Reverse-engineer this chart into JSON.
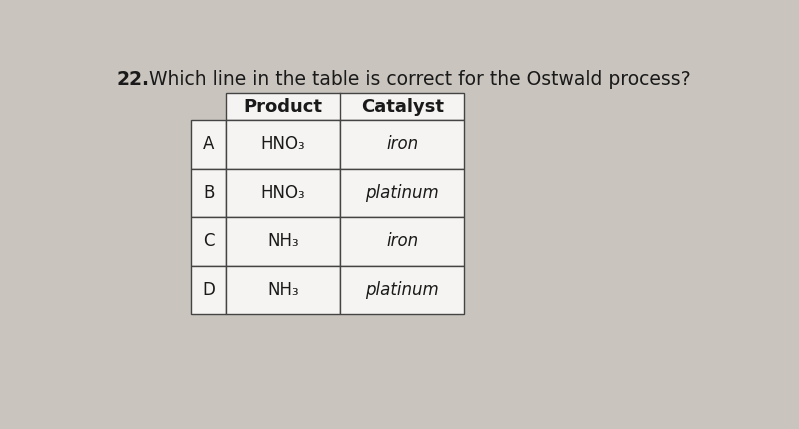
{
  "question_number": "22.",
  "question_text": "  Which line in the table is correct for the Ostwald process?",
  "question_fontsize": 13.5,
  "background_color": "#c9c5be",
  "text_color": "#1a1a1a",
  "table": {
    "header": [
      "Product",
      "Catalyst"
    ],
    "rows": [
      [
        "A",
        "HNO₃",
        "iron"
      ],
      [
        "B",
        "HNO₃",
        "platinum"
      ],
      [
        "C",
        "NH₃",
        "iron"
      ],
      [
        "D",
        "NH₃",
        "platinum"
      ]
    ]
  },
  "cell_fontsize": 12,
  "header_fontsize": 13
}
